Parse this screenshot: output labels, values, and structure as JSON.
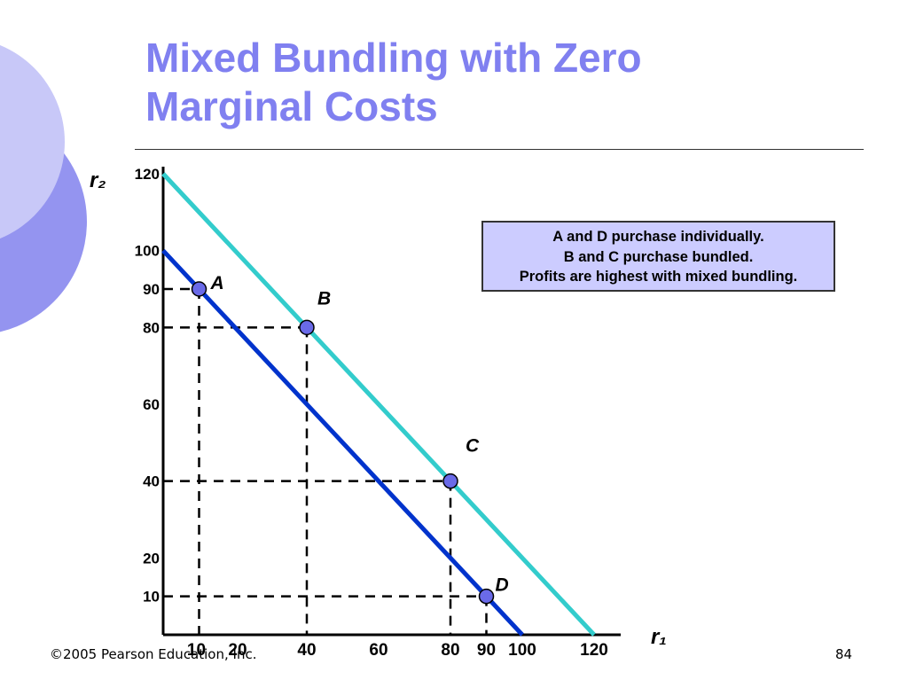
{
  "slide": {
    "title_lines": [
      "Mixed Bundling with Zero",
      "Marginal Costs"
    ],
    "footer_copyright": "©2005 Pearson Education, Inc.",
    "page_number": "84",
    "colors": {
      "title": "#8080f0",
      "deco_light": "#c8c8f8",
      "deco_dark": "#9494f0"
    }
  },
  "chart_data": {
    "type": "line",
    "xlabel": "r₁",
    "ylabel": "r₂",
    "xlim": [
      0,
      120
    ],
    "ylim": [
      0,
      120
    ],
    "x_ticks": [
      10,
      20,
      40,
      60,
      80,
      90,
      100,
      120
    ],
    "y_ticks": [
      10,
      20,
      40,
      60,
      80,
      90,
      100,
      120
    ],
    "series": [
      {
        "color": "#33cccc",
        "x": [
          0,
          120
        ],
        "y": [
          120,
          0
        ]
      },
      {
        "color": "#0033cc",
        "x": [
          0,
          100
        ],
        "y": [
          100,
          0
        ]
      }
    ],
    "points": [
      {
        "label": "A",
        "x": 10,
        "y": 90
      },
      {
        "label": "B",
        "x": 40,
        "y": 80
      },
      {
        "label": "C",
        "x": 80,
        "y": 40
      },
      {
        "label": "D",
        "x": 90,
        "y": 10
      }
    ],
    "annotation_lines": [
      "A and D purchase individually.",
      "B and C purchase bundled.",
      "Profits are highest with mixed bundling."
    ]
  }
}
